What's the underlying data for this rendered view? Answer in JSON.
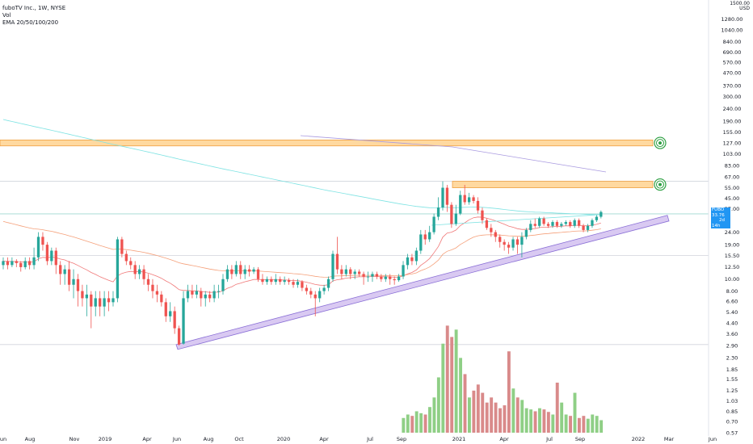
{
  "header": {
    "title": "fuboTV Inc., 1W, NYSE",
    "vol_label": "Vol",
    "ema_label": "EMA 20/50/100/200"
  },
  "axis": {
    "currency_top": "1500.00",
    "currency": "USD"
  },
  "price_label": {
    "symbol": "FUBO",
    "price": "33.76",
    "countdown": "2d 14h",
    "color": "#2196f3"
  },
  "colors": {
    "up": "#26a69a",
    "down": "#ef5350",
    "vol_up": "#8fcf86",
    "vol_down": "#d98a8a",
    "zone_fill": "#ffd9a0",
    "zone_border": "#f0a040",
    "trend_fill": "#d9c9f2",
    "trend_border": "#8a6fd6",
    "ema20": "#f07878",
    "ema50": "#f5a07a",
    "ema100": "#7fe3e3",
    "ema200": "#a99ae0",
    "target_icon": "#2ea043"
  },
  "chart_data": {
    "type": "candlestick",
    "title": "fuboTV Inc., 1W, NYSE",
    "y_scale": "log",
    "ylim": [
      0.57,
      1500
    ],
    "y_ticks": [
      "1280.00",
      "1040.00",
      "840.00",
      "690.00",
      "570.00",
      "470.00",
      "370.00",
      "300.00",
      "240.00",
      "190.00",
      "155.00",
      "127.00",
      "103.00",
      "83.00",
      "67.00",
      "55.00",
      "45.00",
      "37.00",
      "24.00",
      "19.00",
      "15.50",
      "12.50",
      "10.00",
      "8.00",
      "6.60",
      "5.40",
      "4.40",
      "3.60",
      "2.90",
      "2.30",
      "1.85",
      "1.55",
      "1.25",
      "1.03",
      "0.85",
      "0.70",
      "0.57"
    ],
    "x_ticks": [
      "Jun",
      "Aug",
      "Nov",
      "2019",
      "Apr",
      "Jun",
      "Aug",
      "Oct",
      "2020",
      "Apr",
      "Jul",
      "Sep",
      "2021",
      "Apr",
      "Jul",
      "Sep",
      "2022",
      "Mar",
      "Jun"
    ],
    "current_price": 33.76,
    "resistance_zones": [
      {
        "low": 120,
        "high": 134
      },
      {
        "low": 55,
        "high": 62
      }
    ],
    "rising_trendline": [
      {
        "x": "2019-Jun",
        "y": 2.95
      },
      {
        "x": "2022-Jan",
        "y": 30
      }
    ],
    "horizontal_levels": [
      62,
      33.76,
      15.5,
      2.95
    ],
    "candles": [
      {
        "o": 13,
        "c": 14,
        "h": 15,
        "l": 12,
        "v": 0
      },
      {
        "o": 14,
        "c": 13,
        "h": 15,
        "l": 12,
        "v": 0
      },
      {
        "o": 13,
        "c": 14,
        "h": 15,
        "l": 12.5,
        "v": 0
      },
      {
        "o": 14,
        "c": 13.5,
        "h": 14.5,
        "l": 12.5,
        "v": 0
      },
      {
        "o": 13.5,
        "c": 12.5,
        "h": 14,
        "l": 11.5,
        "v": 0
      },
      {
        "o": 12.5,
        "c": 14,
        "h": 15,
        "l": 12,
        "v": 0
      },
      {
        "o": 14,
        "c": 13,
        "h": 15,
        "l": 12,
        "v": 0
      },
      {
        "o": 13,
        "c": 15,
        "h": 18,
        "l": 12,
        "v": 0
      },
      {
        "o": 15,
        "c": 22,
        "h": 24,
        "l": 14,
        "v": 0
      },
      {
        "o": 22,
        "c": 19,
        "h": 24,
        "l": 17,
        "v": 0
      },
      {
        "o": 19,
        "c": 14,
        "h": 20,
        "l": 13,
        "v": 0
      },
      {
        "o": 14,
        "c": 17,
        "h": 18,
        "l": 13,
        "v": 0
      },
      {
        "o": 17,
        "c": 13,
        "h": 18,
        "l": 11,
        "v": 0
      },
      {
        "o": 13,
        "c": 11,
        "h": 14,
        "l": 9,
        "v": 0
      },
      {
        "o": 11,
        "c": 12,
        "h": 13,
        "l": 9,
        "v": 0
      },
      {
        "o": 12,
        "c": 9,
        "h": 14,
        "l": 8,
        "v": 0
      },
      {
        "o": 9,
        "c": 10,
        "h": 12,
        "l": 7,
        "v": 0
      },
      {
        "o": 10,
        "c": 8,
        "h": 11,
        "l": 6,
        "v": 0
      },
      {
        "o": 8,
        "c": 7,
        "h": 9,
        "l": 6,
        "v": 0
      },
      {
        "o": 7,
        "c": 7.5,
        "h": 9,
        "l": 5,
        "v": 0
      },
      {
        "o": 7.5,
        "c": 6,
        "h": 8,
        "l": 4,
        "v": 0
      },
      {
        "o": 6,
        "c": 7,
        "h": 8,
        "l": 5,
        "v": 0
      },
      {
        "o": 7,
        "c": 6,
        "h": 8,
        "l": 5,
        "v": 0
      },
      {
        "o": 6,
        "c": 7,
        "h": 8,
        "l": 5,
        "v": 0
      },
      {
        "o": 7,
        "c": 6.5,
        "h": 8,
        "l": 5.5,
        "v": 0
      },
      {
        "o": 6.5,
        "c": 7,
        "h": 8,
        "l": 6,
        "v": 0
      },
      {
        "o": 7,
        "c": 21,
        "h": 22,
        "l": 6.5,
        "v": 0
      },
      {
        "o": 21,
        "c": 16,
        "h": 22,
        "l": 15,
        "v": 0
      },
      {
        "o": 16,
        "c": 14,
        "h": 17,
        "l": 13,
        "v": 0
      },
      {
        "o": 14,
        "c": 13,
        "h": 15,
        "l": 12,
        "v": 0
      },
      {
        "o": 13,
        "c": 11,
        "h": 14,
        "l": 10,
        "v": 0
      },
      {
        "o": 11,
        "c": 12,
        "h": 13,
        "l": 10,
        "v": 0
      },
      {
        "o": 12,
        "c": 10,
        "h": 13,
        "l": 9,
        "v": 0
      },
      {
        "o": 10,
        "c": 9,
        "h": 11,
        "l": 8,
        "v": 0
      },
      {
        "o": 9,
        "c": 8,
        "h": 10,
        "l": 7,
        "v": 0
      },
      {
        "o": 8,
        "c": 7.5,
        "h": 9,
        "l": 6.5,
        "v": 0
      },
      {
        "o": 7.5,
        "c": 6.5,
        "h": 8,
        "l": 6,
        "v": 0
      },
      {
        "o": 6.5,
        "c": 5,
        "h": 7,
        "l": 4.5,
        "v": 0
      },
      {
        "o": 5,
        "c": 5.5,
        "h": 6.5,
        "l": 4.5,
        "v": 0
      },
      {
        "o": 5.5,
        "c": 4,
        "h": 6,
        "l": 3.6,
        "v": 0
      },
      {
        "o": 4,
        "c": 2.95,
        "h": 4.2,
        "l": 2.9,
        "v": 0
      },
      {
        "o": 3,
        "c": 7,
        "h": 8,
        "l": 2.95,
        "v": 0
      },
      {
        "o": 7,
        "c": 8,
        "h": 9,
        "l": 6.5,
        "v": 0
      },
      {
        "o": 8,
        "c": 7.5,
        "h": 9,
        "l": 7,
        "v": 0
      },
      {
        "o": 7.5,
        "c": 8,
        "h": 9,
        "l": 7,
        "v": 0
      },
      {
        "o": 8,
        "c": 7,
        "h": 8.5,
        "l": 6,
        "v": 0
      },
      {
        "o": 7,
        "c": 7.5,
        "h": 8,
        "l": 6,
        "v": 0
      },
      {
        "o": 7.5,
        "c": 7,
        "h": 8,
        "l": 6.5,
        "v": 0
      },
      {
        "o": 7,
        "c": 8,
        "h": 9,
        "l": 6.5,
        "v": 0
      },
      {
        "o": 8,
        "c": 8,
        "h": 9,
        "l": 7,
        "v": 0
      },
      {
        "o": 8,
        "c": 10,
        "h": 11,
        "l": 7.5,
        "v": 0
      },
      {
        "o": 10,
        "c": 12,
        "h": 13,
        "l": 9.5,
        "v": 0
      },
      {
        "o": 12,
        "c": 11,
        "h": 13,
        "l": 10,
        "v": 0
      },
      {
        "o": 11,
        "c": 13,
        "h": 14,
        "l": 10.5,
        "v": 0
      },
      {
        "o": 13,
        "c": 11,
        "h": 14,
        "l": 10,
        "v": 0
      },
      {
        "o": 11,
        "c": 12,
        "h": 13,
        "l": 10,
        "v": 0
      },
      {
        "o": 12,
        "c": 11.5,
        "h": 13,
        "l": 10.5,
        "v": 0
      },
      {
        "o": 11.5,
        "c": 12,
        "h": 12.5,
        "l": 11,
        "v": 0
      },
      {
        "o": 12,
        "c": 10,
        "h": 12.5,
        "l": 9.5,
        "v": 0
      },
      {
        "o": 10,
        "c": 9.5,
        "h": 11,
        "l": 9,
        "v": 0
      },
      {
        "o": 9.5,
        "c": 10,
        "h": 10.5,
        "l": 9,
        "v": 0
      },
      {
        "o": 10,
        "c": 9.5,
        "h": 10.5,
        "l": 9,
        "v": 0
      },
      {
        "o": 9.5,
        "c": 10,
        "h": 11,
        "l": 9,
        "v": 0
      },
      {
        "o": 10,
        "c": 9.5,
        "h": 10.5,
        "l": 9,
        "v": 0
      },
      {
        "o": 9.5,
        "c": 9.8,
        "h": 10.5,
        "l": 9,
        "v": 0
      },
      {
        "o": 9.8,
        "c": 9.5,
        "h": 10.2,
        "l": 9,
        "v": 0
      },
      {
        "o": 9.5,
        "c": 9,
        "h": 10,
        "l": 8.5,
        "v": 0
      },
      {
        "o": 9,
        "c": 9.5,
        "h": 10,
        "l": 8.5,
        "v": 0
      },
      {
        "o": 9.5,
        "c": 8.5,
        "h": 9.8,
        "l": 8,
        "v": 0
      },
      {
        "o": 8.5,
        "c": 8,
        "h": 9,
        "l": 7.5,
        "v": 0
      },
      {
        "o": 8,
        "c": 7.5,
        "h": 8.5,
        "l": 7,
        "v": 0
      },
      {
        "o": 7.5,
        "c": 7,
        "h": 8,
        "l": 5,
        "v": 0
      },
      {
        "o": 7,
        "c": 8,
        "h": 8.5,
        "l": 6.5,
        "v": 0
      },
      {
        "o": 8,
        "c": 8.5,
        "h": 9,
        "l": 7.5,
        "v": 0
      },
      {
        "o": 8.5,
        "c": 10,
        "h": 10.5,
        "l": 8,
        "v": 0
      },
      {
        "o": 10,
        "c": 16,
        "h": 17,
        "l": 9.5,
        "v": 0
      },
      {
        "o": 16,
        "c": 12,
        "h": 22,
        "l": 11,
        "v": 0
      },
      {
        "o": 12,
        "c": 11,
        "h": 13,
        "l": 10,
        "v": 0
      },
      {
        "o": 11,
        "c": 12,
        "h": 13,
        "l": 10.5,
        "v": 0
      },
      {
        "o": 12,
        "c": 11,
        "h": 12.5,
        "l": 10,
        "v": 0
      },
      {
        "o": 11,
        "c": 11.5,
        "h": 12,
        "l": 10,
        "v": 0
      },
      {
        "o": 11.5,
        "c": 11,
        "h": 12,
        "l": 10.5,
        "v": 0
      },
      {
        "o": 11,
        "c": 10.5,
        "h": 11.5,
        "l": 9,
        "v": 0
      },
      {
        "o": 10.5,
        "c": 10.5,
        "h": 11.5,
        "l": 9.5,
        "v": 0
      },
      {
        "o": 10.5,
        "c": 11,
        "h": 11.5,
        "l": 9.5,
        "v": 0
      },
      {
        "o": 11,
        "c": 10.5,
        "h": 11.5,
        "l": 10,
        "v": 0
      },
      {
        "o": 10.5,
        "c": 10,
        "h": 11,
        "l": 9.5,
        "v": 0
      },
      {
        "o": 10,
        "c": 10.5,
        "h": 11,
        "l": 9.5,
        "v": 0
      },
      {
        "o": 10.5,
        "c": 10,
        "h": 11,
        "l": 9,
        "v": 0
      },
      {
        "o": 10,
        "c": 9.8,
        "h": 10.5,
        "l": 9,
        "v": 0
      },
      {
        "o": 9.8,
        "c": 10.5,
        "h": 11,
        "l": 9.5,
        "v": 0
      },
      {
        "o": 10.5,
        "c": 13,
        "h": 14,
        "l": 10,
        "v": 0.75
      },
      {
        "o": 13,
        "c": 15,
        "h": 16,
        "l": 12,
        "v": 0.8
      },
      {
        "o": 15,
        "c": 14,
        "h": 16,
        "l": 13,
        "v": 0.78
      },
      {
        "o": 14,
        "c": 17,
        "h": 18,
        "l": 13,
        "v": 0.85
      },
      {
        "o": 17,
        "c": 23,
        "h": 25,
        "l": 16,
        "v": 0.82
      },
      {
        "o": 23,
        "c": 21,
        "h": 25,
        "l": 19,
        "v": 0.8
      },
      {
        "o": 21,
        "c": 24,
        "h": 27,
        "l": 20,
        "v": 0.92
      },
      {
        "o": 24,
        "c": 32,
        "h": 34,
        "l": 23,
        "v": 1.1
      },
      {
        "o": 32,
        "c": 38,
        "h": 46,
        "l": 30,
        "v": 1.6
      },
      {
        "o": 38,
        "c": 55,
        "h": 62,
        "l": 36,
        "v": 3.0
      },
      {
        "o": 55,
        "c": 40,
        "h": 58,
        "l": 35,
        "v": 4.2
      },
      {
        "o": 40,
        "c": 28,
        "h": 42,
        "l": 26,
        "v": 3.4
      },
      {
        "o": 28,
        "c": 34,
        "h": 40,
        "l": 27,
        "v": 3.9
      },
      {
        "o": 34,
        "c": 48,
        "h": 52,
        "l": 33,
        "v": 2.3
      },
      {
        "o": 48,
        "c": 42,
        "h": 58,
        "l": 40,
        "v": 1.7
      },
      {
        "o": 42,
        "c": 46,
        "h": 50,
        "l": 40,
        "v": 1.1
      },
      {
        "o": 46,
        "c": 43,
        "h": 48,
        "l": 41,
        "v": 1.25
      },
      {
        "o": 43,
        "c": 36,
        "h": 46,
        "l": 34,
        "v": 1.4
      },
      {
        "o": 36,
        "c": 30,
        "h": 38,
        "l": 28,
        "v": 1.2
      },
      {
        "o": 30,
        "c": 26,
        "h": 31,
        "l": 25,
        "v": 1.0
      },
      {
        "o": 26,
        "c": 24,
        "h": 28,
        "l": 22,
        "v": 1.1
      },
      {
        "o": 24,
        "c": 22,
        "h": 25,
        "l": 20,
        "v": 1.0
      },
      {
        "o": 22,
        "c": 20,
        "h": 23,
        "l": 18,
        "v": 0.9
      },
      {
        "o": 20,
        "c": 19,
        "h": 21,
        "l": 17,
        "v": 0.95
      },
      {
        "o": 19,
        "c": 18,
        "h": 20,
        "l": 16,
        "v": 2.6
      },
      {
        "o": 18,
        "c": 21,
        "h": 22,
        "l": 17,
        "v": 1.3
      },
      {
        "o": 21,
        "c": 19,
        "h": 22,
        "l": 16,
        "v": 1.1
      },
      {
        "o": 19,
        "c": 22,
        "h": 24,
        "l": 15,
        "v": 1.05
      },
      {
        "o": 22,
        "c": 25,
        "h": 26,
        "l": 21,
        "v": 0.9
      },
      {
        "o": 25,
        "c": 28,
        "h": 30,
        "l": 24,
        "v": 0.88
      },
      {
        "o": 28,
        "c": 27,
        "h": 31,
        "l": 26,
        "v": 0.85
      },
      {
        "o": 27,
        "c": 31,
        "h": 32,
        "l": 26,
        "v": 0.9
      },
      {
        "o": 31,
        "c": 28,
        "h": 32,
        "l": 27,
        "v": 0.88
      },
      {
        "o": 28,
        "c": 27,
        "h": 29,
        "l": 26,
        "v": 0.84
      },
      {
        "o": 27,
        "c": 29,
        "h": 30,
        "l": 26,
        "v": 0.8
      },
      {
        "o": 29,
        "c": 27,
        "h": 30,
        "l": 26,
        "v": 1.45
      },
      {
        "o": 27,
        "c": 28,
        "h": 29,
        "l": 26,
        "v": 1.0
      },
      {
        "o": 28,
        "c": 29,
        "h": 30,
        "l": 27,
        "v": 0.8
      },
      {
        "o": 29,
        "c": 27,
        "h": 30,
        "l": 26,
        "v": 0.78
      },
      {
        "o": 27,
        "c": 30,
        "h": 31,
        "l": 26,
        "v": 1.2
      },
      {
        "o": 30,
        "c": 27,
        "h": 31,
        "l": 26,
        "v": 0.75
      },
      {
        "o": 27,
        "c": 25,
        "h": 28,
        "l": 24,
        "v": 0.78
      },
      {
        "o": 25,
        "c": 27,
        "h": 28,
        "l": 24,
        "v": 0.74
      },
      {
        "o": 27,
        "c": 30,
        "h": 31,
        "l": 26,
        "v": 0.8
      },
      {
        "o": 30,
        "c": 32,
        "h": 33,
        "l": 29,
        "v": 0.78
      },
      {
        "o": 32,
        "c": 35,
        "h": 36,
        "l": 31,
        "v": 0.72
      }
    ],
    "ema_series": [
      {
        "name": "EMA 20",
        "color": "#f07878"
      },
      {
        "name": "EMA 50",
        "color": "#f5a07a"
      },
      {
        "name": "EMA 100",
        "color": "#7fe3e3"
      },
      {
        "name": "EMA 200",
        "color": "#a99ae0"
      }
    ]
  }
}
